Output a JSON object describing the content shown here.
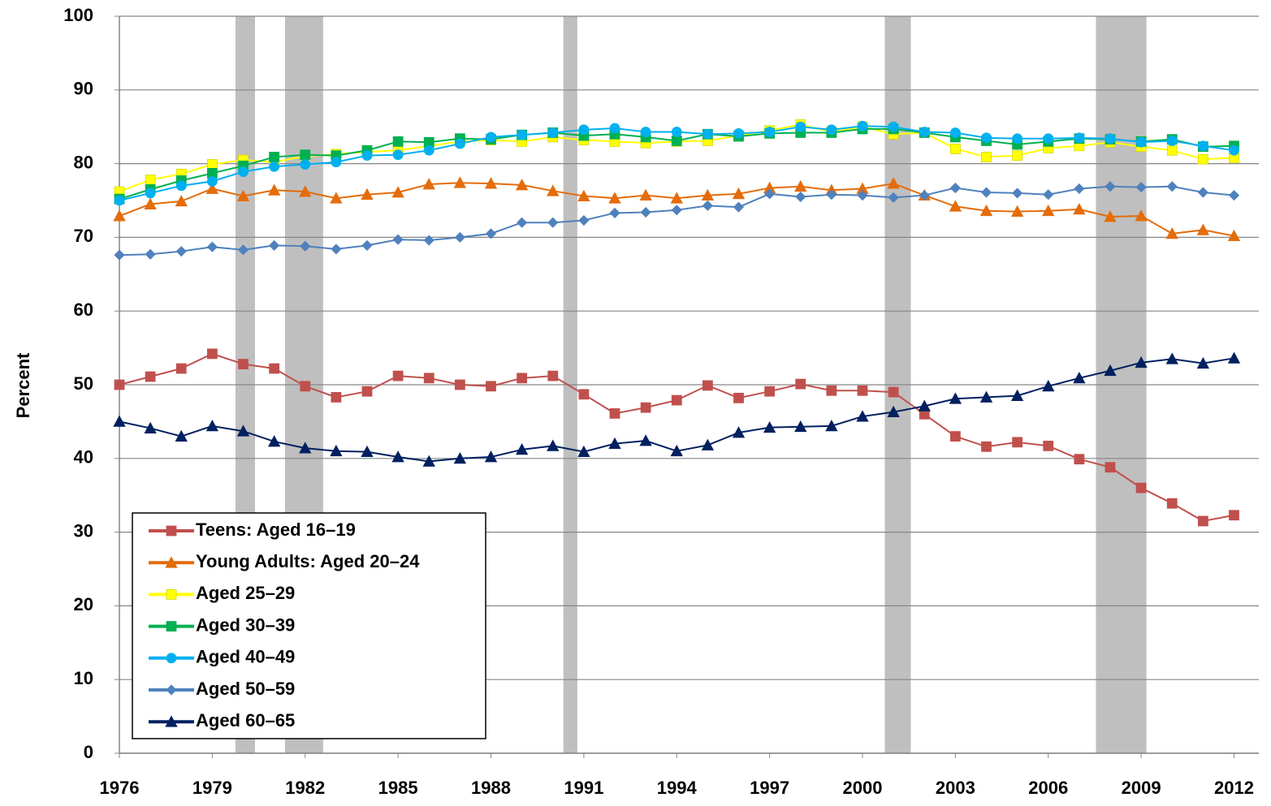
{
  "chart_data": {
    "type": "line",
    "y_label": "Percent",
    "x": [
      1976,
      1977,
      1978,
      1979,
      1980,
      1981,
      1982,
      1983,
      1984,
      1985,
      1986,
      1987,
      1988,
      1989,
      1990,
      1991,
      1992,
      1993,
      1994,
      1995,
      1996,
      1997,
      1998,
      1999,
      2000,
      2001,
      2002,
      2003,
      2004,
      2005,
      2006,
      2007,
      2008,
      2009,
      2010,
      2011,
      2012
    ],
    "xlim": [
      1976,
      2012.8
    ],
    "xticks": [
      1976,
      1979,
      1982,
      1985,
      1988,
      1991,
      1994,
      1997,
      2000,
      2003,
      2006,
      2009,
      2012
    ],
    "ylim": [
      0,
      100
    ],
    "yticks": [
      0,
      10,
      20,
      30,
      40,
      50,
      60,
      70,
      80,
      90,
      100
    ],
    "grid": true,
    "legend": "lower left",
    "shaded_ranges": [
      [
        1979.75,
        1980.38
      ],
      [
        1981.35,
        1982.58
      ],
      [
        1990.34,
        1990.79
      ],
      [
        2000.72,
        2001.56
      ],
      [
        2007.54,
        2009.17
      ]
    ],
    "shade_color": "#bfbfbf",
    "series": [
      {
        "name": "Teens: Aged 16–19",
        "color": "#c0504d",
        "marker": "square",
        "values": [
          50.0,
          51.1,
          52.2,
          54.2,
          52.8,
          52.2,
          49.8,
          48.3,
          49.1,
          51.2,
          50.9,
          50.0,
          49.8,
          50.9,
          51.2,
          48.7,
          46.1,
          46.9,
          47.9,
          49.9,
          48.2,
          49.1,
          50.1,
          49.2,
          49.2,
          49.0,
          46.0,
          43.0,
          41.6,
          42.2,
          41.7,
          39.9,
          38.8,
          36.0,
          33.9,
          31.5,
          32.3
        ]
      },
      {
        "name": "Young Adults: Aged 20–24",
        "color": "#e46c0a",
        "marker": "triangle",
        "values": [
          72.9,
          74.5,
          74.9,
          76.6,
          75.6,
          76.4,
          76.2,
          75.3,
          75.8,
          76.1,
          77.2,
          77.4,
          77.3,
          77.1,
          76.3,
          75.6,
          75.3,
          75.7,
          75.3,
          75.7,
          75.9,
          76.7,
          76.9,
          76.4,
          76.6,
          77.3,
          75.7,
          74.2,
          73.6,
          73.5,
          73.6,
          73.8,
          72.8,
          72.9,
          70.5,
          71.0,
          70.2
        ]
      },
      {
        "name": "Aged 25–29",
        "color": "#ffff00",
        "marker": "square",
        "values": [
          76.2,
          77.8,
          78.6,
          79.9,
          80.5,
          80.2,
          81.0,
          81.3,
          81.6,
          81.8,
          82.4,
          83.0,
          83.2,
          83.0,
          83.6,
          83.2,
          83.0,
          82.8,
          83.0,
          83.1,
          83.8,
          84.5,
          85.3,
          84.3,
          85.0,
          84.0,
          84.2,
          82.0,
          80.9,
          81.1,
          82.1,
          82.4,
          82.9,
          82.3,
          81.8,
          80.6,
          80.8
        ]
      },
      {
        "name": "Aged 30–39",
        "color": "#00b050",
        "marker": "square",
        "values": [
          75.2,
          76.5,
          77.7,
          78.7,
          79.7,
          80.9,
          81.2,
          81.1,
          81.8,
          83.0,
          82.9,
          83.4,
          83.3,
          83.9,
          84.2,
          83.8,
          84.0,
          83.6,
          83.1,
          84.0,
          83.7,
          84.1,
          84.2,
          84.2,
          84.7,
          84.7,
          84.2,
          83.6,
          83.1,
          82.6,
          83.0,
          83.4,
          83.3,
          83.0,
          83.3,
          82.3,
          82.4
        ]
      },
      {
        "name": "Aged 40–49",
        "color": "#00b0f0",
        "marker": "circle",
        "values": [
          75.0,
          76.0,
          77.0,
          77.6,
          78.9,
          79.6,
          79.9,
          80.2,
          81.1,
          81.2,
          81.8,
          82.7,
          83.6,
          83.9,
          84.2,
          84.6,
          84.8,
          84.3,
          84.3,
          84.0,
          84.1,
          84.3,
          85.0,
          84.6,
          85.1,
          85.0,
          84.3,
          84.2,
          83.5,
          83.4,
          83.4,
          83.5,
          83.4,
          82.9,
          83.1,
          82.4,
          81.8
        ]
      },
      {
        "name": "Aged 50–59",
        "color": "#4f81bd",
        "marker": "diamond",
        "values": [
          67.6,
          67.7,
          68.1,
          68.7,
          68.3,
          68.9,
          68.8,
          68.4,
          68.9,
          69.7,
          69.6,
          70.0,
          70.5,
          72.0,
          72.0,
          72.3,
          73.3,
          73.4,
          73.7,
          74.3,
          74.1,
          75.9,
          75.5,
          75.8,
          75.7,
          75.4,
          75.7,
          76.7,
          76.1,
          76.0,
          75.8,
          76.6,
          76.9,
          76.8,
          76.9,
          76.1,
          75.7
        ]
      },
      {
        "name": "Aged 60–65",
        "color": "#002060",
        "marker": "triangle",
        "values": [
          45.0,
          44.1,
          43.0,
          44.4,
          43.7,
          42.3,
          41.4,
          41.0,
          40.9,
          40.2,
          39.6,
          40.0,
          40.2,
          41.2,
          41.7,
          40.9,
          42.0,
          42.4,
          41.0,
          41.8,
          43.5,
          44.2,
          44.3,
          44.4,
          45.7,
          46.3,
          47.1,
          48.1,
          48.3,
          48.5,
          49.8,
          50.9,
          51.9,
          53.0,
          53.5,
          52.9,
          53.6
        ]
      }
    ]
  }
}
